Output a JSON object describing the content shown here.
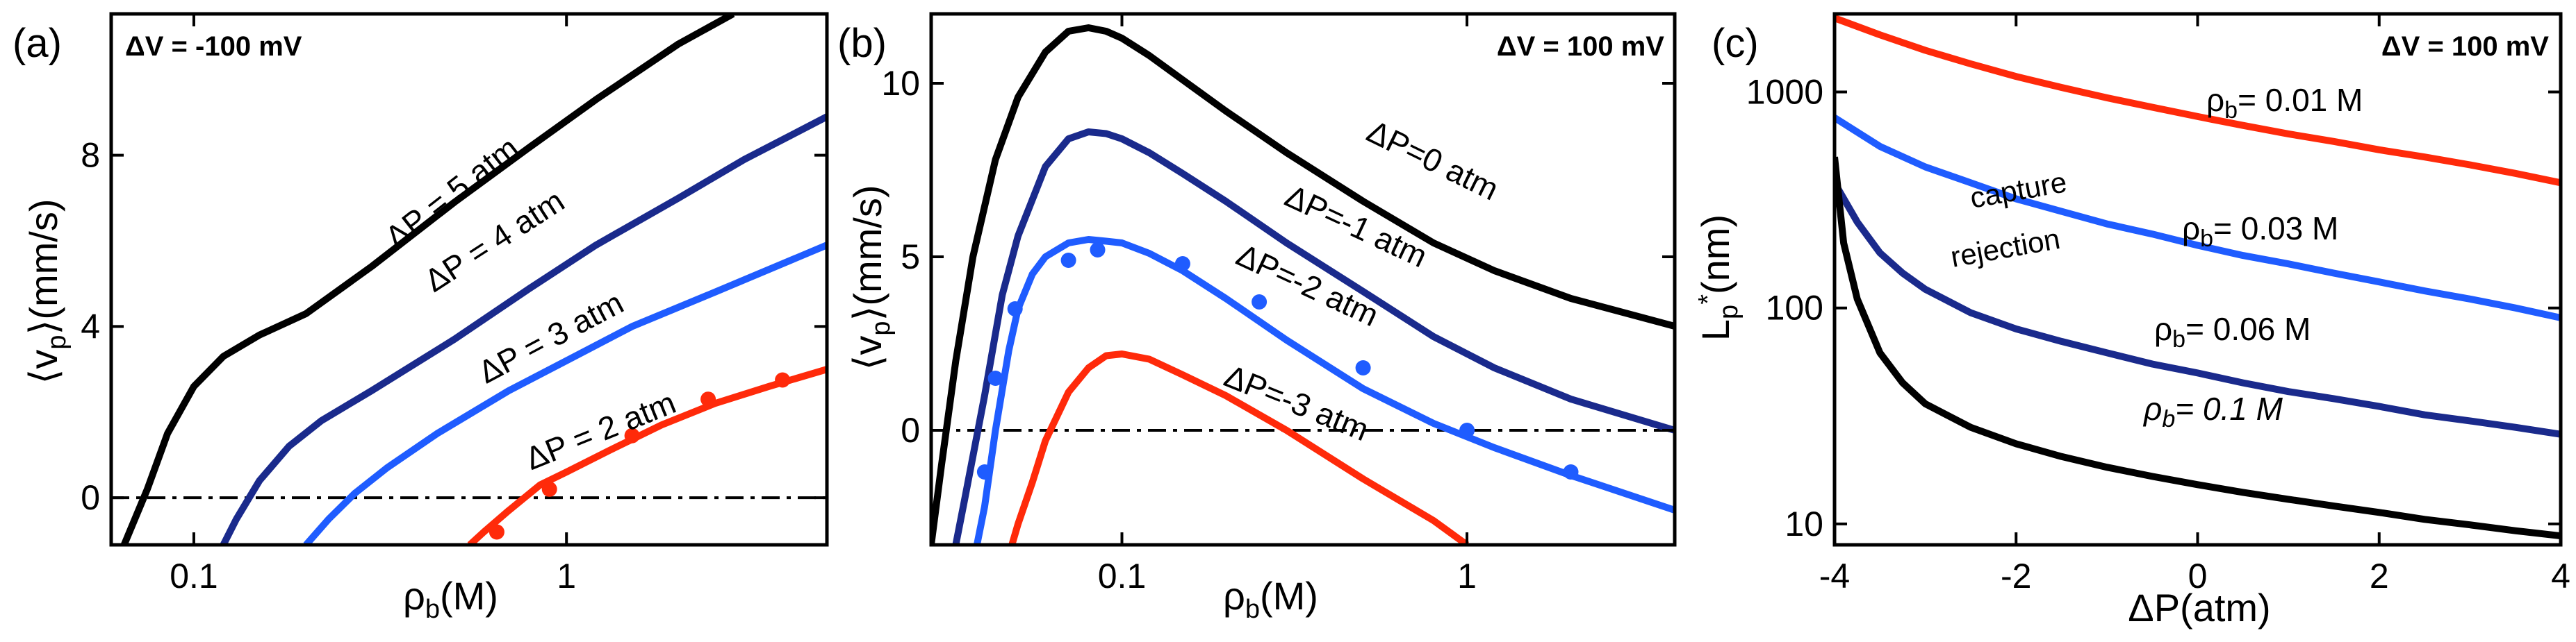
{
  "colors": {
    "black": "#000000",
    "navy": "#1a2a8c",
    "blue": "#1f5cff",
    "red": "#ff2a0a"
  },
  "chart_data": [
    {
      "type": "line",
      "panel": "(a)",
      "condition": "ΔV = -100 mV",
      "xlabel": "ρb(M)",
      "ylabel": "⟨vp⟩(mm/s)",
      "xscale": "log",
      "xlim": [
        0.06,
        5
      ],
      "ylim": [
        -1.1,
        11.3
      ],
      "xticks": [
        {
          "v": 0.1,
          "label": "0.1"
        },
        {
          "v": 1,
          "label": "1"
        }
      ],
      "yticks": [
        {
          "v": 0,
          "label": "0"
        },
        {
          "v": 4,
          "label": "4"
        },
        {
          "v": 8,
          "label": "8"
        }
      ],
      "reference_line_y": 0,
      "series": [
        {
          "name": "ΔP = 5 atm",
          "color": "black",
          "x": [
            0.065,
            0.075,
            0.085,
            0.1,
            0.12,
            0.15,
            0.2,
            0.3,
            0.5,
            0.8,
            1.2,
            2.0,
            2.8
          ],
          "y": [
            -1.1,
            0.2,
            1.5,
            2.6,
            3.3,
            3.8,
            4.3,
            5.4,
            6.9,
            8.2,
            9.3,
            10.6,
            11.3
          ]
        },
        {
          "name": "ΔP = 4 atm",
          "color": "navy",
          "x": [
            0.12,
            0.13,
            0.15,
            0.18,
            0.22,
            0.3,
            0.5,
            0.8,
            1.2,
            2.0,
            3.0,
            5.0
          ],
          "y": [
            -1.1,
            -0.5,
            0.4,
            1.2,
            1.8,
            2.5,
            3.7,
            4.9,
            5.9,
            7.0,
            7.9,
            8.9
          ]
        },
        {
          "name": "ΔP = 3 atm",
          "color": "blue",
          "x": [
            0.2,
            0.23,
            0.27,
            0.33,
            0.45,
            0.7,
            1.0,
            1.5,
            2.5,
            5.0
          ],
          "y": [
            -1.1,
            -0.5,
            0.1,
            0.7,
            1.5,
            2.5,
            3.2,
            4.0,
            4.8,
            5.9
          ]
        },
        {
          "name": "ΔP = 2 atm",
          "color": "red",
          "x": [
            0.55,
            0.6,
            0.7,
            0.85,
            1.0,
            1.3,
            1.8,
            2.5,
            3.5,
            5.0
          ],
          "y": [
            -1.1,
            -0.8,
            -0.3,
            0.3,
            0.6,
            1.1,
            1.7,
            2.2,
            2.6,
            3.0
          ],
          "markers_x": [
            0.65,
            0.9,
            1.5,
            2.4,
            3.8
          ],
          "markers_y": [
            -0.8,
            0.2,
            1.45,
            2.3,
            2.75
          ]
        }
      ]
    },
    {
      "type": "line",
      "panel": "(b)",
      "condition": "ΔV = 100 mV",
      "xlabel": "ρb(M)",
      "ylabel": "⟨vp⟩(mm/s)",
      "xscale": "log",
      "xlim": [
        0.028,
        4
      ],
      "ylim": [
        -3.3,
        12
      ],
      "xticks": [
        {
          "v": 0.1,
          "label": "0.1"
        },
        {
          "v": 1,
          "label": "1"
        }
      ],
      "yticks": [
        {
          "v": 0,
          "label": "0"
        },
        {
          "v": 5,
          "label": "5"
        },
        {
          "v": 10,
          "label": "10"
        }
      ],
      "reference_line_y": 0,
      "series": [
        {
          "name": "ΔP=0 atm",
          "color": "black",
          "x": [
            0.028,
            0.03,
            0.033,
            0.037,
            0.043,
            0.05,
            0.06,
            0.07,
            0.08,
            0.09,
            0.1,
            0.12,
            0.15,
            0.2,
            0.3,
            0.5,
            0.8,
            1.2,
            2.0,
            4.0
          ],
          "y": [
            -3.3,
            -1.0,
            2.0,
            5.0,
            7.8,
            9.6,
            10.9,
            11.5,
            11.6,
            11.5,
            11.3,
            10.8,
            10.1,
            9.2,
            8.0,
            6.6,
            5.4,
            4.6,
            3.8,
            3.0
          ]
        },
        {
          "name": "ΔP=-1 atm",
          "color": "navy",
          "x": [
            0.033,
            0.035,
            0.04,
            0.045,
            0.05,
            0.06,
            0.07,
            0.08,
            0.09,
            0.1,
            0.12,
            0.15,
            0.2,
            0.3,
            0.5,
            0.8,
            1.2,
            2.0,
            4.0
          ],
          "y": [
            -3.3,
            -2.0,
            1.0,
            3.9,
            5.6,
            7.6,
            8.4,
            8.6,
            8.55,
            8.4,
            8.0,
            7.4,
            6.6,
            5.4,
            4.0,
            2.7,
            1.8,
            0.9,
            0.0
          ]
        },
        {
          "name": "ΔP=-2 atm",
          "color": "blue",
          "x": [
            0.038,
            0.04,
            0.043,
            0.047,
            0.05,
            0.055,
            0.06,
            0.07,
            0.08,
            0.09,
            0.1,
            0.12,
            0.15,
            0.2,
            0.3,
            0.5,
            0.8,
            1.2,
            2.0,
            4.0
          ],
          "y": [
            -3.3,
            -2.2,
            0.0,
            2.3,
            3.5,
            4.5,
            5.0,
            5.4,
            5.5,
            5.45,
            5.4,
            5.1,
            4.6,
            3.8,
            2.6,
            1.2,
            0.2,
            -0.5,
            -1.3,
            -2.3
          ],
          "markers_x": [
            0.04,
            0.043,
            0.049,
            0.07,
            0.085,
            0.15,
            0.25,
            0.5,
            1.0,
            2.0
          ],
          "markers_y": [
            -1.2,
            1.5,
            3.5,
            4.9,
            5.2,
            4.8,
            3.7,
            1.8,
            0.0,
            -1.2
          ]
        },
        {
          "name": "ΔP=-3 atm",
          "color": "red",
          "x": [
            0.048,
            0.05,
            0.055,
            0.06,
            0.07,
            0.08,
            0.09,
            0.1,
            0.12,
            0.15,
            0.2,
            0.3,
            0.5,
            0.8,
            1.0
          ],
          "y": [
            -3.3,
            -2.7,
            -1.5,
            -0.3,
            1.1,
            1.8,
            2.15,
            2.2,
            2.05,
            1.6,
            1.0,
            0.0,
            -1.4,
            -2.6,
            -3.3
          ]
        }
      ]
    },
    {
      "type": "line",
      "panel": "(c)",
      "condition": "ΔV = 100 mV",
      "xlabel": "ΔP(atm)",
      "ylabel": "Lp*(nm)",
      "yscale": "log",
      "xlim": [
        -4,
        4
      ],
      "ylim": [
        8,
        2300
      ],
      "xticks": [
        {
          "v": -4,
          "label": "-4"
        },
        {
          "v": -2,
          "label": "-2"
        },
        {
          "v": 0,
          "label": "0"
        },
        {
          "v": 2,
          "label": "2"
        },
        {
          "v": 4,
          "label": "4"
        }
      ],
      "yticks": [
        {
          "v": 10,
          "label": "10"
        },
        {
          "v": 100,
          "label": "100"
        },
        {
          "v": 1000,
          "label": "1000"
        }
      ],
      "annotations": [
        "capture",
        "rejection"
      ],
      "series": [
        {
          "name": "ρb= 0.01 M",
          "color": "red",
          "x": [
            -4,
            -3.5,
            -3,
            -2.5,
            -2,
            -1.5,
            -1,
            -0.5,
            0,
            0.5,
            1,
            1.5,
            2,
            2.5,
            3,
            3.5,
            4
          ],
          "y": [
            2200,
            1840,
            1560,
            1350,
            1180,
            1050,
            940,
            850,
            770,
            700,
            640,
            590,
            540,
            500,
            460,
            420,
            380
          ]
        },
        {
          "name": "ρb= 0.03 M",
          "color": "blue",
          "x": [
            -4,
            -3.5,
            -3,
            -2.5,
            -2,
            -1.5,
            -1,
            -0.5,
            0,
            0.5,
            1,
            1.5,
            2,
            2.5,
            3,
            3.5,
            4
          ],
          "y": [
            760,
            560,
            450,
            380,
            320,
            280,
            245,
            220,
            195,
            175,
            160,
            145,
            132,
            120,
            110,
            100,
            90
          ]
        },
        {
          "name": "ρb= 0.06 M",
          "color": "navy",
          "x": [
            -4,
            -3.75,
            -3.5,
            -3.25,
            -3,
            -2.5,
            -2,
            -1.5,
            -1,
            -0.5,
            0,
            0.5,
            1,
            1.5,
            2,
            2.5,
            3,
            3.5,
            4
          ],
          "y": [
            380,
            250,
            180,
            145,
            122,
            95,
            80,
            70,
            62,
            55,
            50,
            45,
            41,
            38,
            35,
            32,
            30,
            28,
            26
          ]
        },
        {
          "name": "ρb= 0.1 M",
          "color": "black",
          "x": [
            -4,
            -3.9,
            -3.75,
            -3.5,
            -3.25,
            -3,
            -2.5,
            -2,
            -1.5,
            -1,
            -0.5,
            0,
            0.5,
            1,
            1.5,
            2,
            2.5,
            3,
            3.5,
            4
          ],
          "y": [
            500,
            200,
            110,
            62,
            45,
            36,
            28,
            23.5,
            20.5,
            18.3,
            16.6,
            15.2,
            14,
            13,
            12.1,
            11.3,
            10.5,
            9.9,
            9.3,
            8.8
          ]
        }
      ]
    }
  ]
}
